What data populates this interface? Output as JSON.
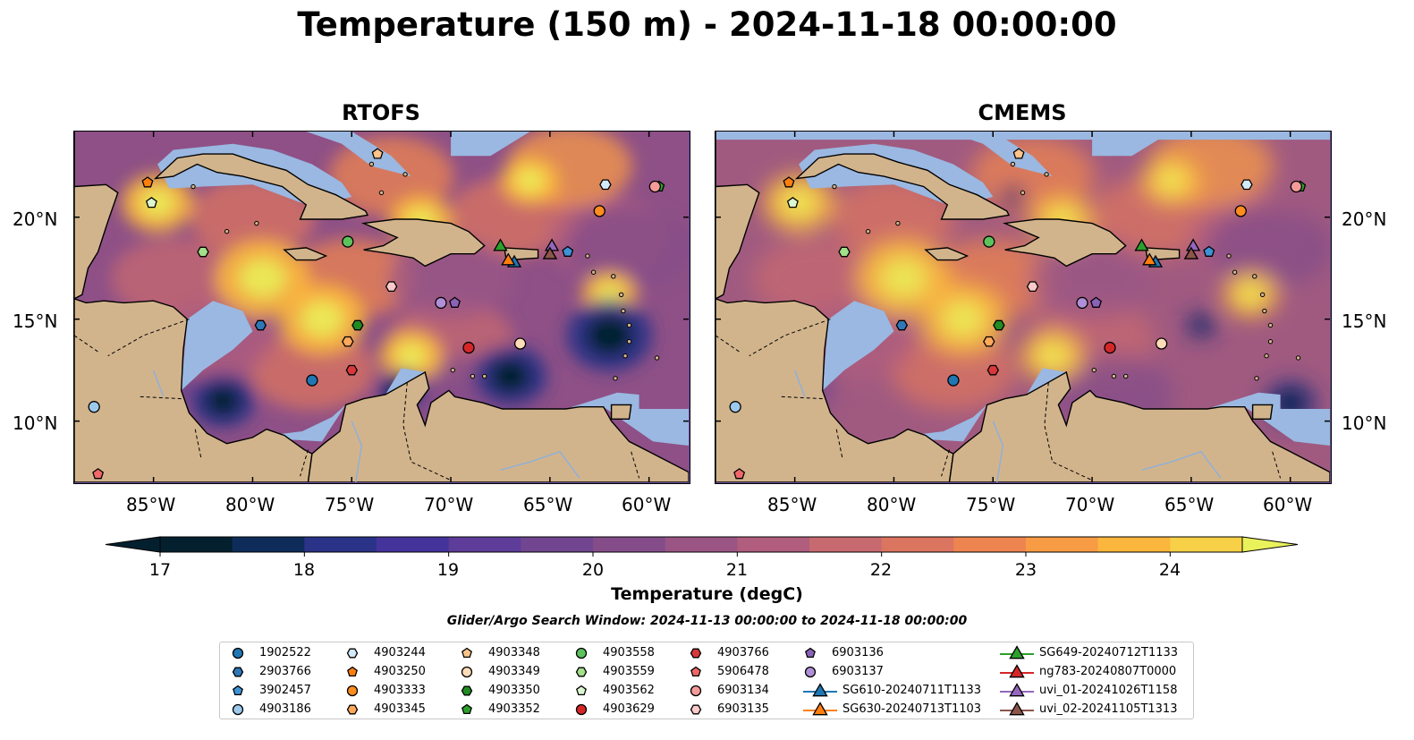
{
  "figure": {
    "title": "Temperature (150 m) - 2024-11-18 00:00:00",
    "panels": [
      {
        "title": "RTOFS"
      },
      {
        "title": "CMEMS"
      }
    ],
    "lon_ticks": [
      "85°W",
      "80°W",
      "75°W",
      "70°W",
      "65°W",
      "60°W"
    ],
    "lat_ticks": [
      "20°N",
      "15°N",
      "10°N"
    ],
    "colorbar": {
      "label": "Temperature (degC)",
      "ticks": [
        "17",
        "18",
        "19",
        "20",
        "21",
        "22",
        "23",
        "24"
      ],
      "range": [
        17,
        24.5
      ],
      "colors": [
        "#04202f",
        "#0d2c5a",
        "#2a3388",
        "#45339c",
        "#5e3c99",
        "#71458f",
        "#844d8a",
        "#9a5585",
        "#b05d7e",
        "#c76a70",
        "#dc7560",
        "#ee8550",
        "#f89b45",
        "#fbb63d",
        "#f7d047",
        "#eaf25b"
      ]
    },
    "search_window": "Glider/Argo Search Window: 2024-11-13 00:00:00 to 2024-11-18 00:00:00",
    "colors": {
      "land": "#d2b48c",
      "shallow": "#9ab8e1",
      "ocean_mid": "#6a4e9a"
    }
  },
  "legend": {
    "items": [
      {
        "label": "1902522",
        "marker": "circle",
        "color": "#1f77b4"
      },
      {
        "label": "2903766",
        "marker": "hexagon",
        "color": "#2f78b8"
      },
      {
        "label": "3902457",
        "marker": "pentagon",
        "color": "#3d93d6"
      },
      {
        "label": "4903186",
        "marker": "circle",
        "color": "#9cc9ec"
      },
      {
        "label": "4903244",
        "marker": "hexagon",
        "color": "#d3eaf8"
      },
      {
        "label": "4903250",
        "marker": "pentagon",
        "color": "#ff7f0e"
      },
      {
        "label": "4903333",
        "marker": "circle",
        "color": "#ff8c1f"
      },
      {
        "label": "4903345",
        "marker": "hexagon",
        "color": "#ffa75a"
      },
      {
        "label": "4903348",
        "marker": "pentagon",
        "color": "#ffc48a"
      },
      {
        "label": "4903349",
        "marker": "circle",
        "color": "#ffdcb8"
      },
      {
        "label": "4903350",
        "marker": "hexagon",
        "color": "#228b22"
      },
      {
        "label": "4903352",
        "marker": "pentagon",
        "color": "#2ca02c"
      },
      {
        "label": "4903558",
        "marker": "circle",
        "color": "#5cc25c"
      },
      {
        "label": "4903559",
        "marker": "hexagon",
        "color": "#a2e08a"
      },
      {
        "label": "4903562",
        "marker": "pentagon",
        "color": "#dcf6cf"
      },
      {
        "label": "4903629",
        "marker": "circle",
        "color": "#d62728"
      },
      {
        "label": "4903766",
        "marker": "hexagon",
        "color": "#d9383a"
      },
      {
        "label": "5906478",
        "marker": "pentagon",
        "color": "#f06868"
      },
      {
        "label": "6903134",
        "marker": "circle",
        "color": "#f59a9a"
      },
      {
        "label": "6903135",
        "marker": "hexagon",
        "color": "#fccaca"
      },
      {
        "label": "6903136",
        "marker": "pentagon",
        "color": "#8a63b8"
      },
      {
        "label": "6903137",
        "marker": "circle",
        "color": "#b08fd8"
      },
      {
        "label": "SG610-20240711T1133",
        "marker": "triangle",
        "color": "#1f77b4",
        "line": true
      },
      {
        "label": "SG630-20240713T1103",
        "marker": "triangle",
        "color": "#ff7f0e",
        "line": true
      },
      {
        "label": "SG649-20240712T1133",
        "marker": "triangle",
        "color": "#2ca02c",
        "line": true
      },
      {
        "label": "ng783-20240807T0000",
        "marker": "triangle",
        "color": "#d62728",
        "line": true
      },
      {
        "label": "uvi_01-20241026T1158",
        "marker": "triangle",
        "color": "#9467bd",
        "line": true
      },
      {
        "label": "uvi_02-20241105T1313",
        "marker": "triangle",
        "color": "#8c564b",
        "line": true
      }
    ]
  },
  "observations": [
    {
      "id": "1902522",
      "lon": -77.0,
      "lat": 12.0,
      "marker": "circle",
      "color": "#1f77b4"
    },
    {
      "id": "2903766",
      "lon": -79.6,
      "lat": 14.7,
      "marker": "hexagon",
      "color": "#2f78b8"
    },
    {
      "id": "3902457",
      "lon": -64.1,
      "lat": 18.3,
      "marker": "pentagon",
      "color": "#3d93d6"
    },
    {
      "id": "4903186",
      "lon": -88.0,
      "lat": 10.7,
      "marker": "circle",
      "color": "#9cc9ec"
    },
    {
      "id": "4903244",
      "lon": -62.2,
      "lat": 21.6,
      "marker": "hexagon",
      "color": "#d3eaf8"
    },
    {
      "id": "4903250",
      "lon": -85.3,
      "lat": 21.7,
      "marker": "pentagon",
      "color": "#ff7f0e"
    },
    {
      "id": "4903333",
      "lon": -62.5,
      "lat": 20.3,
      "marker": "circle",
      "color": "#ff8c1f"
    },
    {
      "id": "4903345",
      "lon": -75.2,
      "lat": 13.9,
      "marker": "hexagon",
      "color": "#ffa75a"
    },
    {
      "id": "4903348",
      "lon": -73.7,
      "lat": 23.1,
      "marker": "pentagon",
      "color": "#ffc48a"
    },
    {
      "id": "4903349",
      "lon": -66.5,
      "lat": 13.8,
      "marker": "circle",
      "color": "#ffdcb8"
    },
    {
      "id": "4903350",
      "lon": -74.7,
      "lat": 14.7,
      "marker": "hexagon",
      "color": "#228b22"
    },
    {
      "id": "4903352",
      "lon": -59.5,
      "lat": 21.5,
      "marker": "pentagon",
      "color": "#2ca02c"
    },
    {
      "id": "4903558",
      "lon": -75.2,
      "lat": 18.8,
      "marker": "circle",
      "color": "#5cc25c"
    },
    {
      "id": "4903559",
      "lon": -82.5,
      "lat": 18.3,
      "marker": "hexagon",
      "color": "#a2e08a"
    },
    {
      "id": "4903562",
      "lon": -85.1,
      "lat": 20.7,
      "marker": "pentagon",
      "color": "#dcf6cf"
    },
    {
      "id": "4903629",
      "lon": -69.1,
      "lat": 13.6,
      "marker": "circle",
      "color": "#d62728"
    },
    {
      "id": "4903766",
      "lon": -75.0,
      "lat": 12.5,
      "marker": "hexagon",
      "color": "#d9383a"
    },
    {
      "id": "5906478",
      "lon": -87.8,
      "lat": 7.4,
      "marker": "pentagon",
      "color": "#f06868"
    },
    {
      "id": "6903134",
      "lon": -59.7,
      "lat": 21.5,
      "marker": "circle",
      "color": "#f59a9a"
    },
    {
      "id": "6903135",
      "lon": -73.0,
      "lat": 16.6,
      "marker": "hexagon",
      "color": "#fccaca"
    },
    {
      "id": "6903136",
      "lon": -69.8,
      "lat": 15.8,
      "marker": "pentagon",
      "color": "#8a63b8"
    },
    {
      "id": "6903137",
      "lon": -70.5,
      "lat": 15.8,
      "marker": "circle",
      "color": "#b08fd8"
    },
    {
      "id": "SG610-20240711T1133",
      "lon": -66.8,
      "lat": 17.8,
      "marker": "triangle",
      "color": "#1f77b4"
    },
    {
      "id": "SG630-20240713T1103",
      "lon": -67.1,
      "lat": 17.9,
      "marker": "triangle",
      "color": "#ff7f0e"
    },
    {
      "id": "SG649-20240712T1133",
      "lon": -67.5,
      "lat": 18.6,
      "marker": "triangle",
      "color": "#2ca02c"
    },
    {
      "id": "ng783-20240807T0000",
      "lon": -65.0,
      "lat": 18.2,
      "marker": "triangle",
      "color": "#d62728"
    },
    {
      "id": "uvi_01-20241026T1158",
      "lon": -64.9,
      "lat": 18.6,
      "marker": "triangle",
      "color": "#9467bd"
    },
    {
      "id": "uvi_02-20241105T1313",
      "lon": -65.0,
      "lat": 18.2,
      "marker": "triangle",
      "color": "#8c564b"
    }
  ],
  "warm_cores": [
    {
      "lon": -84.8,
      "lat": 20.7,
      "r": 1.8
    },
    {
      "lon": -79.5,
      "lat": 17.0,
      "r": 2.4
    },
    {
      "lon": -76.5,
      "lat": 15.0,
      "r": 2.2
    },
    {
      "lon": -71.5,
      "lat": 19.8,
      "r": 1.6
    },
    {
      "lon": -66.0,
      "lat": 21.8,
      "r": 1.5
    },
    {
      "lon": -72.0,
      "lat": 13.2,
      "r": 1.6
    },
    {
      "lon": -62.0,
      "lat": 16.2,
      "r": 1.4
    }
  ],
  "cold_cores": [
    {
      "lon": -81.5,
      "lat": 11.0,
      "r": 1.5
    },
    {
      "lon": -67.0,
      "lat": 12.2,
      "r": 1.7
    },
    {
      "lon": -62.0,
      "lat": 14.2,
      "r": 2.0
    },
    {
      "lon": -72.5,
      "lat": 11.5,
      "r": 1.1
    },
    {
      "lon": -86.5,
      "lat": 9.5,
      "r": 2.0
    }
  ],
  "cmems_cold_cores": [
    {
      "lon": -60.0,
      "lat": 10.9,
      "r": 1.2
    },
    {
      "lon": -74.0,
      "lat": 21.0,
      "r": 0.6
    },
    {
      "lon": -64.5,
      "lat": 14.7,
      "r": 0.7
    }
  ]
}
